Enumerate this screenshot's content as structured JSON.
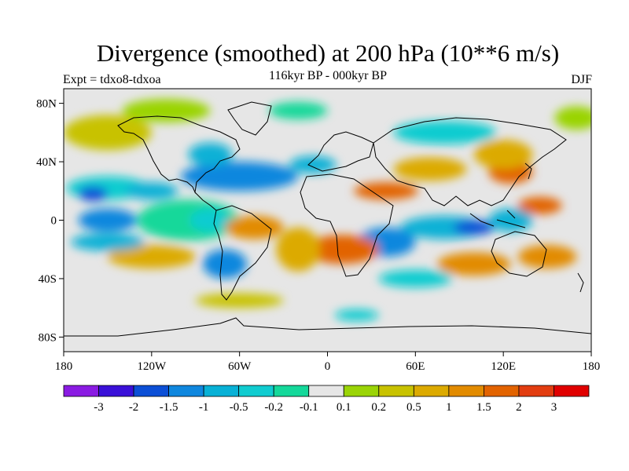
{
  "header": {
    "title": "Divergence (smoothed) at 200 hPa (10**6 m/s)",
    "experiment": "Expt = tdxo8-tdxoa",
    "period": "116kyr BP - 000kyr BP",
    "season": "DJF"
  },
  "map": {
    "lat_ticks": [
      {
        "value": 80,
        "label": "80N"
      },
      {
        "value": 40,
        "label": "40N"
      },
      {
        "value": 0,
        "label": "0"
      },
      {
        "value": -40,
        "label": "40S"
      },
      {
        "value": -80,
        "label": "80S"
      }
    ],
    "lon_ticks": [
      {
        "value": -180,
        "label": "180"
      },
      {
        "value": -120,
        "label": "120W"
      },
      {
        "value": -60,
        "label": "60W"
      },
      {
        "value": 0,
        "label": "0"
      },
      {
        "value": 60,
        "label": "60E"
      },
      {
        "value": 120,
        "label": "120E"
      },
      {
        "value": 180,
        "label": "180"
      }
    ],
    "lat_range": [
      -90,
      90
    ],
    "lon_range": [
      -180,
      180
    ],
    "background_color": "#e6e6e6"
  },
  "colorbar": {
    "colors": [
      "#8a1be2",
      "#3a10d8",
      "#0c4fd6",
      "#0f87de",
      "#08b1d6",
      "#10ccd0",
      "#14d89a",
      "#e6e6e6",
      "#9ad406",
      "#c8c200",
      "#dcaa00",
      "#e28b00",
      "#e26300",
      "#e23d10",
      "#e00000"
    ],
    "labels": [
      "-3",
      "-2",
      "-1.5",
      "-1",
      "-0.5",
      "-0.2",
      "-0.1",
      "0.1",
      "0.2",
      "0.5",
      "1",
      "1.5",
      "2",
      "3"
    ]
  },
  "fields": [
    {
      "lon": -150,
      "lat": 22,
      "level": 5,
      "rx": 28,
      "ry": 8
    },
    {
      "lon": -120,
      "lat": 20,
      "level": 4,
      "rx": 18,
      "ry": 6
    },
    {
      "lon": -160,
      "lat": 18,
      "level": 2,
      "rx": 10,
      "ry": 5
    },
    {
      "lon": -95,
      "lat": 0,
      "level": 6,
      "rx": 35,
      "ry": 14
    },
    {
      "lon": -150,
      "lat": 0,
      "level": 3,
      "rx": 20,
      "ry": 8
    },
    {
      "lon": -80,
      "lat": 0,
      "level": 5,
      "rx": 14,
      "ry": 8
    },
    {
      "lon": -60,
      "lat": 30,
      "level": 3,
      "rx": 40,
      "ry": 10
    },
    {
      "lon": -80,
      "lat": 45,
      "level": 4,
      "rx": 15,
      "ry": 8
    },
    {
      "lon": -10,
      "lat": 38,
      "level": 4,
      "rx": 16,
      "ry": 6
    },
    {
      "lon": 40,
      "lat": 20,
      "level": 12,
      "rx": 22,
      "ry": 6
    },
    {
      "lon": 70,
      "lat": 35,
      "level": 10,
      "rx": 25,
      "ry": 8
    },
    {
      "lon": 125,
      "lat": 33,
      "level": 12,
      "rx": 15,
      "ry": 8
    },
    {
      "lon": 120,
      "lat": 45,
      "level": 10,
      "rx": 20,
      "ry": 10
    },
    {
      "lon": 80,
      "lat": -5,
      "level": 4,
      "rx": 30,
      "ry": 8
    },
    {
      "lon": 100,
      "lat": -5,
      "level": 2,
      "rx": 14,
      "ry": 5
    },
    {
      "lon": 125,
      "lat": 0,
      "level": 4,
      "rx": 15,
      "ry": 8
    },
    {
      "lon": 145,
      "lat": 10,
      "level": 12,
      "rx": 15,
      "ry": 6
    },
    {
      "lon": -50,
      "lat": -5,
      "level": 11,
      "rx": 20,
      "ry": 8
    },
    {
      "lon": -70,
      "lat": -30,
      "level": 3,
      "rx": 15,
      "ry": 10
    },
    {
      "lon": 40,
      "lat": -15,
      "level": 3,
      "rx": 20,
      "ry": 10
    },
    {
      "lon": 10,
      "lat": -20,
      "level": 12,
      "rx": 25,
      "ry": 10
    },
    {
      "lon": -20,
      "lat": -20,
      "level": 10,
      "rx": 15,
      "ry": 15
    },
    {
      "lon": -120,
      "lat": -25,
      "level": 10,
      "rx": 30,
      "ry": 8
    },
    {
      "lon": -150,
      "lat": -15,
      "level": 4,
      "rx": 25,
      "ry": 6
    },
    {
      "lon": 100,
      "lat": -30,
      "level": 11,
      "rx": 25,
      "ry": 8
    },
    {
      "lon": 150,
      "lat": -25,
      "level": 11,
      "rx": 20,
      "ry": 8
    },
    {
      "lon": 60,
      "lat": -40,
      "level": 5,
      "rx": 25,
      "ry": 6
    },
    {
      "lon": -60,
      "lat": -55,
      "level": 9,
      "rx": 30,
      "ry": 5
    },
    {
      "lon": 20,
      "lat": -65,
      "level": 5,
      "rx": 15,
      "ry": 4
    },
    {
      "lon": -150,
      "lat": 60,
      "level": 9,
      "rx": 30,
      "ry": 12
    },
    {
      "lon": -110,
      "lat": 75,
      "level": 8,
      "rx": 30,
      "ry": 8
    },
    {
      "lon": -20,
      "lat": 75,
      "level": 6,
      "rx": 20,
      "ry": 6
    },
    {
      "lon": 80,
      "lat": 60,
      "level": 5,
      "rx": 35,
      "ry": 8
    },
    {
      "lon": 170,
      "lat": 70,
      "level": 8,
      "rx": 15,
      "ry": 8
    }
  ]
}
